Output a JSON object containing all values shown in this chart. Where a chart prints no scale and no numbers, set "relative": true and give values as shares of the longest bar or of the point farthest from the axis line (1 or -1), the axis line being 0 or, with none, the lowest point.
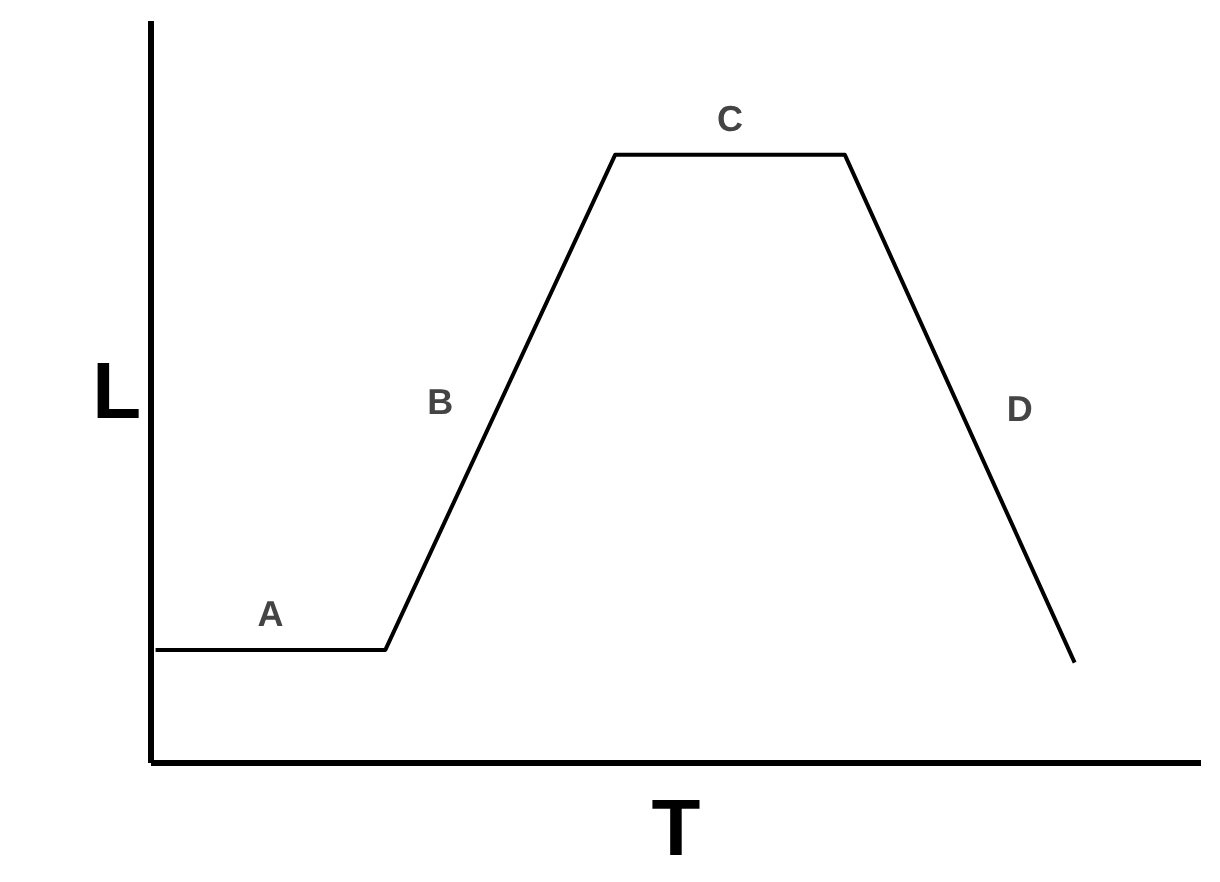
{
  "chart_data": {
    "type": "line",
    "relative": true,
    "xlabel": "T",
    "ylabel": "L",
    "categories": [
      null,
      null,
      null,
      null,
      null
    ],
    "series": [
      {
        "color": "#000000",
        "values": [
          0.186,
          0.186,
          1,
          1,
          0.165
        ]
      }
    ],
    "annotations": [
      "A",
      "B",
      "C",
      "D"
    ],
    "grid": false,
    "marker": "none",
    "line_style": "solid"
  }
}
